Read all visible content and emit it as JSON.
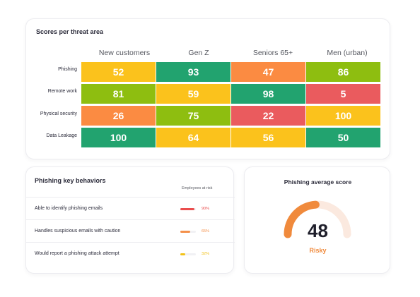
{
  "heatmap": {
    "title": "Scores per threat area",
    "columns": [
      "New customers",
      "Gen Z",
      "Seniors 65+",
      "Men (urban)"
    ],
    "rows": [
      {
        "label": "Phishing",
        "values": [
          "52",
          "93",
          "47",
          "86"
        ],
        "colors": [
          "#fbc21c",
          "#22a36f",
          "#fb8b42",
          "#8ebe10"
        ]
      },
      {
        "label": "Remote work",
        "values": [
          "81",
          "59",
          "98",
          "5"
        ],
        "colors": [
          "#8ebe10",
          "#fbc21c",
          "#22a36f",
          "#ea5b5e"
        ]
      },
      {
        "label": "Physical security",
        "values": [
          "26",
          "75",
          "22",
          "100"
        ],
        "colors": [
          "#fb8b42",
          "#8ebe10",
          "#ea5b5e",
          "#fbc21c"
        ]
      },
      {
        "label": "Data Leakage",
        "values": [
          "100",
          "64",
          "56",
          "50"
        ],
        "colors": [
          "#22a36f",
          "#fbc21c",
          "#fbc21c",
          "#22a36f"
        ]
      }
    ]
  },
  "behaviors": {
    "title": "Phishing key behaviors",
    "subheader": "Employees at risk",
    "items": [
      {
        "label": "Able to identify phishing emails",
        "percent": "90%",
        "fraction": 0.9,
        "color": "#ea4d4d"
      },
      {
        "label": "Handles suspicious emails with caution",
        "percent": "65%",
        "fraction": 0.65,
        "color": "#f4904a"
      },
      {
        "label": "Would report a phishing attack attempt",
        "percent": "32%",
        "fraction": 0.32,
        "color": "#f2c21a"
      }
    ]
  },
  "score": {
    "title": "Phishing average score",
    "value": "48",
    "fraction": 0.48,
    "status": "Risky",
    "color": "#f08a3c",
    "track_color": "#fbe9df"
  }
}
